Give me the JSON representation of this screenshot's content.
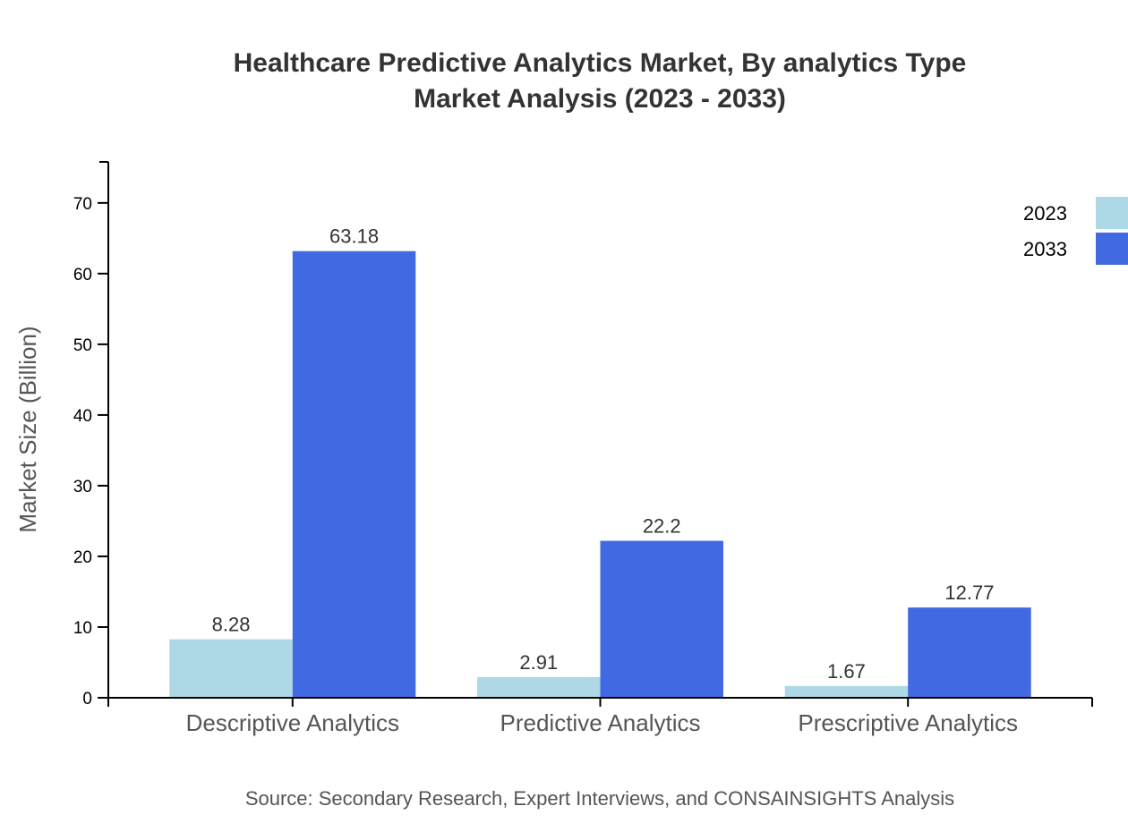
{
  "chart_data": {
    "type": "bar",
    "title": "Healthcare Predictive Analytics Market, By analytics Type",
    "subtitle": "Market Analysis (2023 - 2033)",
    "xlabel": "",
    "ylabel": "Market Size (Billion)",
    "categories": [
      "Descriptive Analytics",
      "Predictive Analytics",
      "Prescriptive Analytics"
    ],
    "series": [
      {
        "name": "2023",
        "color": "#add8e6",
        "values": [
          8.28,
          2.91,
          1.67
        ],
        "labels": [
          "8.28",
          "2.91",
          "1.67"
        ]
      },
      {
        "name": "2033",
        "color": "#4169e1",
        "values": [
          63.18,
          22.2,
          12.77
        ],
        "labels": [
          "63.18",
          "22.2",
          "12.77"
        ]
      }
    ],
    "ylim": [
      0,
      75.8
    ],
    "yticks": [
      0,
      10,
      20,
      30,
      40,
      50,
      60,
      70
    ],
    "grid": false,
    "legend": "top-right",
    "source": "Source: Secondary Research, Expert Interviews, and CONSAINSIGHTS Analysis"
  }
}
